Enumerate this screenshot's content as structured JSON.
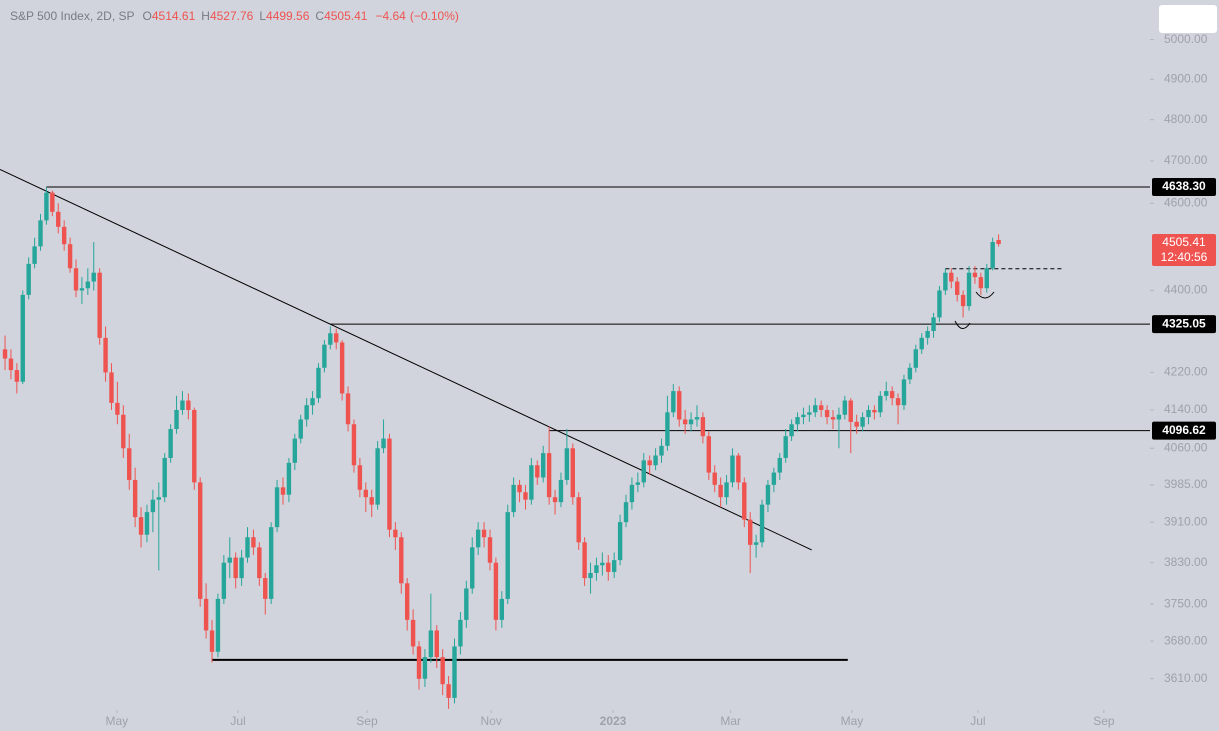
{
  "chart_data": {
    "type": "candlestick",
    "symbol": "S&P 500 Index, 2D, SP",
    "ohlc_letters": [
      "O",
      "H",
      "L",
      "C"
    ],
    "change": {
      "value": -4.64,
      "label": "−4.64"
    },
    "change_pct": {
      "value": -0.1,
      "label": "(−0.10%)"
    },
    "countdown": "12:40:56",
    "log": true,
    "up_color": "#26a69a",
    "down_color": "#ef5350",
    "xlim": [
      -0.85,
      193.6
    ],
    "ylim": [
      3553,
      5102
    ],
    "xticks": [
      {
        "value": 18.9,
        "label": "May"
      },
      {
        "value": 39.4,
        "label": "Jul"
      },
      {
        "value": 61.2,
        "label": "Sep"
      },
      {
        "value": 82.2,
        "label": "Nov"
      },
      {
        "value": 102.8,
        "label": "2023"
      },
      {
        "value": 122.7,
        "label": "Mar"
      },
      {
        "value": 143.2,
        "label": "May"
      },
      {
        "value": 164.5,
        "label": "Jul"
      },
      {
        "value": 185.8,
        "label": "Sep"
      }
    ],
    "yticks": [
      {
        "value": 5000,
        "label": "5000.00"
      },
      {
        "value": 4900,
        "label": "4900.00"
      },
      {
        "value": 4800,
        "label": "4800.00"
      },
      {
        "value": 4700,
        "label": "4700.00"
      },
      {
        "value": 4600,
        "label": "4600.00"
      },
      {
        "value": 4400,
        "label": "4400.00"
      },
      {
        "value": 4220,
        "label": "4220.00"
      },
      {
        "value": 4140,
        "label": "4140.00"
      },
      {
        "value": 4060,
        "label": "4060.00"
      },
      {
        "value": 3985,
        "label": "3985.00"
      },
      {
        "value": 3910,
        "label": "3910.00"
      },
      {
        "value": 3830,
        "label": "3830.00"
      },
      {
        "value": 3750,
        "label": "3750.00"
      },
      {
        "value": 3680,
        "label": "3680.00"
      },
      {
        "value": 3610,
        "label": "3610.00"
      }
    ],
    "levels": [
      {
        "value": 4638.3,
        "label": "4638.30",
        "start": 7
      },
      {
        "value": 4325.05,
        "label": "4325.05",
        "start": 55
      },
      {
        "value": 4096.62,
        "label": "4096.62",
        "start": 92
      }
    ],
    "lines": [
      {
        "x": [
          -0.85,
          136.4
        ],
        "y": [
          4680,
          3855
        ],
        "style": "solid",
        "width": 1
      },
      {
        "x": [
          35,
          142.5
        ],
        "y": [
          3645,
          3645
        ],
        "style": "solid",
        "width": 2
      },
      {
        "x": [
          159,
          178.7
        ],
        "y": [
          4449,
          4449
        ],
        "style": "dashed",
        "width": 1
      }
    ],
    "candles": [
      [
        4270,
        4300,
        4225,
        4250
      ],
      [
        4250,
        4270,
        4205,
        4225
      ],
      [
        4225,
        4240,
        4175,
        4200
      ],
      [
        4200,
        4400,
        4195,
        4390
      ],
      [
        4390,
        4475,
        4380,
        4460
      ],
      [
        4460,
        4520,
        4450,
        4500
      ],
      [
        4500,
        4575,
        4490,
        4560
      ],
      [
        4560,
        4637,
        4550,
        4625
      ],
      [
        4625,
        4630,
        4570,
        4580
      ],
      [
        4580,
        4600,
        4530,
        4545
      ],
      [
        4545,
        4560,
        4490,
        4505
      ],
      [
        4505,
        4520,
        4440,
        4450
      ],
      [
        4450,
        4470,
        4385,
        4400
      ],
      [
        4400,
        4430,
        4370,
        4405
      ],
      [
        4405,
        4450,
        4390,
        4420
      ],
      [
        4420,
        4510,
        4400,
        4440
      ],
      [
        4440,
        4450,
        4280,
        4295
      ],
      [
        4295,
        4320,
        4200,
        4220
      ],
      [
        4220,
        4240,
        4140,
        4155
      ],
      [
        4155,
        4200,
        4110,
        4130
      ],
      [
        4130,
        4150,
        4040,
        4060
      ],
      [
        4060,
        4090,
        3975,
        3995
      ],
      [
        3995,
        4020,
        3900,
        3920
      ],
      [
        3920,
        3940,
        3860,
        3885
      ],
      [
        3885,
        3945,
        3870,
        3930
      ],
      [
        3930,
        3975,
        3890,
        3955
      ],
      [
        3955,
        3990,
        3815,
        3960
      ],
      [
        3960,
        4050,
        3950,
        4040
      ],
      [
        4040,
        4110,
        4030,
        4100
      ],
      [
        4100,
        4170,
        4090,
        4140
      ],
      [
        4140,
        4180,
        4130,
        4160
      ],
      [
        4160,
        4175,
        4120,
        4140
      ],
      [
        4140,
        4145,
        3975,
        3990
      ],
      [
        3990,
        4000,
        3745,
        3760
      ],
      [
        3760,
        3790,
        3685,
        3700
      ],
      [
        3700,
        3720,
        3640,
        3660
      ],
      [
        3660,
        3770,
        3650,
        3760
      ],
      [
        3760,
        3845,
        3750,
        3830
      ],
      [
        3830,
        3880,
        3800,
        3840
      ],
      [
        3840,
        3850,
        3780,
        3800
      ],
      [
        3800,
        3855,
        3785,
        3840
      ],
      [
        3840,
        3900,
        3830,
        3880
      ],
      [
        3880,
        3895,
        3845,
        3860
      ],
      [
        3860,
        3870,
        3785,
        3800
      ],
      [
        3800,
        3810,
        3730,
        3760
      ],
      [
        3760,
        3910,
        3750,
        3900
      ],
      [
        3900,
        3995,
        3890,
        3980
      ],
      [
        3980,
        4000,
        3945,
        3965
      ],
      [
        3965,
        4040,
        3950,
        4030
      ],
      [
        4030,
        4090,
        4015,
        4080
      ],
      [
        4080,
        4130,
        4070,
        4120
      ],
      [
        4120,
        4165,
        4105,
        4150
      ],
      [
        4150,
        4180,
        4130,
        4165
      ],
      [
        4165,
        4240,
        4155,
        4230
      ],
      [
        4230,
        4290,
        4220,
        4280
      ],
      [
        4280,
        4320,
        4270,
        4305
      ],
      [
        4305,
        4315,
        4270,
        4285
      ],
      [
        4285,
        4290,
        4160,
        4175
      ],
      [
        4175,
        4190,
        4095,
        4110
      ],
      [
        4110,
        4120,
        4010,
        4025
      ],
      [
        4025,
        4040,
        3960,
        3975
      ],
      [
        3975,
        3990,
        3930,
        3960
      ],
      [
        3960,
        3975,
        3920,
        3945
      ],
      [
        3945,
        4075,
        3935,
        4060
      ],
      [
        4060,
        4120,
        4050,
        4080
      ],
      [
        4080,
        4090,
        3880,
        3895
      ],
      [
        3895,
        3910,
        3855,
        3880
      ],
      [
        3880,
        3890,
        3770,
        3790
      ],
      [
        3790,
        3800,
        3700,
        3720
      ],
      [
        3720,
        3740,
        3655,
        3670
      ],
      [
        3670,
        3680,
        3590,
        3610
      ],
      [
        3610,
        3665,
        3595,
        3650
      ],
      [
        3650,
        3770,
        3640,
        3700
      ],
      [
        3700,
        3710,
        3630,
        3650
      ],
      [
        3650,
        3665,
        3580,
        3600
      ],
      [
        3600,
        3615,
        3555,
        3575
      ],
      [
        3575,
        3685,
        3565,
        3670
      ],
      [
        3670,
        3735,
        3655,
        3720
      ],
      [
        3720,
        3795,
        3705,
        3780
      ],
      [
        3780,
        3880,
        3770,
        3860
      ],
      [
        3860,
        3910,
        3845,
        3895
      ],
      [
        3895,
        3910,
        3860,
        3880
      ],
      [
        3880,
        3895,
        3815,
        3830
      ],
      [
        3830,
        3840,
        3700,
        3720
      ],
      [
        3720,
        3775,
        3705,
        3760
      ],
      [
        3760,
        3945,
        3750,
        3930
      ],
      [
        3930,
        4000,
        3920,
        3985
      ],
      [
        3985,
        3995,
        3950,
        3970
      ],
      [
        3970,
        3985,
        3935,
        3955
      ],
      [
        3955,
        4040,
        3945,
        4025
      ],
      [
        4025,
        4035,
        3985,
        4000
      ],
      [
        4000,
        4065,
        3990,
        4050
      ],
      [
        4050,
        4105,
        3945,
        3960
      ],
      [
        3960,
        3975,
        3925,
        3950
      ],
      [
        3950,
        4010,
        3940,
        3995
      ],
      [
        3995,
        4100,
        3985,
        4060
      ],
      [
        4060,
        4070,
        3945,
        3960
      ],
      [
        3960,
        3970,
        3855,
        3870
      ],
      [
        3870,
        3880,
        3785,
        3800
      ],
      [
        3800,
        3830,
        3770,
        3810
      ],
      [
        3810,
        3840,
        3795,
        3825
      ],
      [
        3825,
        3850,
        3805,
        3830
      ],
      [
        3830,
        3845,
        3795,
        3812
      ],
      [
        3812,
        3850,
        3800,
        3835
      ],
      [
        3835,
        3925,
        3825,
        3910
      ],
      [
        3910,
        3965,
        3900,
        3950
      ],
      [
        3950,
        4000,
        3935,
        3985
      ],
      [
        3985,
        4010,
        3970,
        3990
      ],
      [
        3990,
        4050,
        3980,
        4035
      ],
      [
        4035,
        4045,
        4005,
        4025
      ],
      [
        4025,
        4060,
        4015,
        4045
      ],
      [
        4045,
        4080,
        4030,
        4065
      ],
      [
        4065,
        4170,
        4055,
        4135
      ],
      [
        4135,
        4195,
        4125,
        4180
      ],
      [
        4180,
        4190,
        4105,
        4120
      ],
      [
        4120,
        4140,
        4090,
        4110
      ],
      [
        4110,
        4135,
        4095,
        4120
      ],
      [
        4120,
        4150,
        4105,
        4125
      ],
      [
        4125,
        4135,
        4070,
        4085
      ],
      [
        4085,
        4095,
        3995,
        4010
      ],
      [
        4010,
        4025,
        3970,
        3985
      ],
      [
        3985,
        4000,
        3940,
        3960
      ],
      [
        3960,
        4005,
        3945,
        3990
      ],
      [
        3990,
        4060,
        3980,
        4045
      ],
      [
        4045,
        4050,
        3975,
        3990
      ],
      [
        3990,
        4000,
        3900,
        3915
      ],
      [
        3915,
        3930,
        3810,
        3865
      ],
      [
        3865,
        3885,
        3840,
        3870
      ],
      [
        3870,
        3955,
        3860,
        3945
      ],
      [
        3945,
        3995,
        3930,
        3985
      ],
      [
        3985,
        4020,
        3970,
        4010
      ],
      [
        4010,
        4050,
        3995,
        4040
      ],
      [
        4040,
        4100,
        4030,
        4085
      ],
      [
        4085,
        4120,
        4075,
        4110
      ],
      [
        4110,
        4135,
        4095,
        4125
      ],
      [
        4125,
        4145,
        4110,
        4130
      ],
      [
        4130,
        4150,
        4115,
        4135
      ],
      [
        4135,
        4165,
        4125,
        4150
      ],
      [
        4150,
        4160,
        4125,
        4140
      ],
      [
        4140,
        4150,
        4110,
        4125
      ],
      [
        4125,
        4140,
        4100,
        4120
      ],
      [
        4120,
        4145,
        4060,
        4130
      ],
      [
        4130,
        4170,
        4120,
        4160
      ],
      [
        4160,
        4165,
        4050,
        4115
      ],
      [
        4115,
        4130,
        4090,
        4105
      ],
      [
        4105,
        4135,
        4095,
        4125
      ],
      [
        4125,
        4150,
        4110,
        4140
      ],
      [
        4140,
        4150,
        4120,
        4135
      ],
      [
        4135,
        4180,
        4125,
        4170
      ],
      [
        4170,
        4200,
        4160,
        4180
      ],
      [
        4180,
        4190,
        4150,
        4165
      ],
      [
        4165,
        4175,
        4110,
        4150
      ],
      [
        4150,
        4215,
        4140,
        4205
      ],
      [
        4205,
        4240,
        4195,
        4230
      ],
      [
        4230,
        4280,
        4220,
        4270
      ],
      [
        4270,
        4305,
        4260,
        4295
      ],
      [
        4295,
        4320,
        4280,
        4310
      ],
      [
        4310,
        4350,
        4295,
        4340
      ],
      [
        4340,
        4410,
        4330,
        4400
      ],
      [
        4400,
        4450,
        4390,
        4440
      ],
      [
        4440,
        4450,
        4405,
        4420
      ],
      [
        4420,
        4430,
        4375,
        4390
      ],
      [
        4390,
        4400,
        4340,
        4365
      ],
      [
        4365,
        4455,
        4355,
        4440
      ],
      [
        4440,
        4455,
        4415,
        4430
      ],
      [
        4430,
        4440,
        4390,
        4405
      ],
      [
        4405,
        4460,
        4395,
        4450
      ],
      [
        4450,
        4520,
        4445,
        4510
      ],
      [
        4514.61,
        4527.76,
        4499.56,
        4505.41
      ]
    ]
  }
}
